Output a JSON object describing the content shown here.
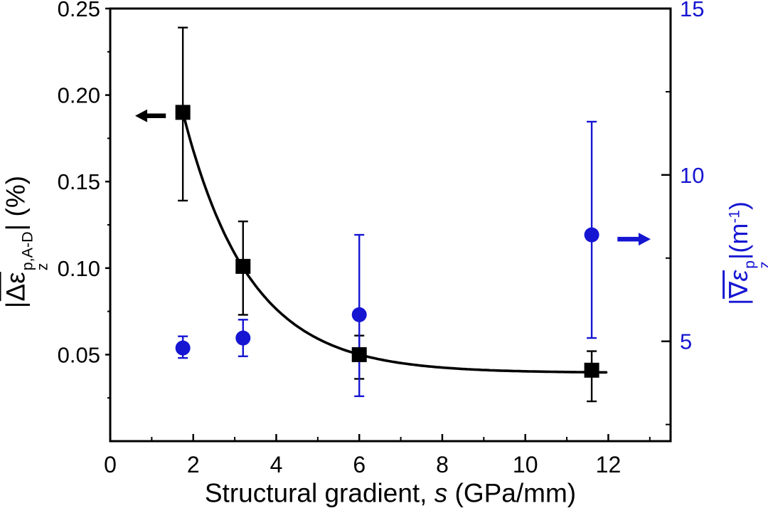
{
  "figure": {
    "background": "#ffffff"
  },
  "chart_data": {
    "type": "scatter",
    "title": "",
    "colors": {
      "left_series": "#000000",
      "right_series": "#1515d2",
      "frame": "#000000"
    },
    "x_axis": {
      "label_parts": {
        "prefix": "Structural gradient, ",
        "var": "s",
        "suffix": " (GPa/mm)"
      },
      "range": [
        0,
        13.5
      ],
      "major_ticks": [
        0,
        2,
        4,
        6,
        8,
        10,
        12
      ],
      "tick_labels": [
        "0",
        "2",
        "4",
        "6",
        "8",
        "10",
        "12"
      ],
      "minor_ticks": [
        1,
        3,
        5,
        7,
        9,
        11,
        13
      ]
    },
    "left_axis": {
      "label_parts": {
        "bar_open": "|",
        "overline": "Δε",
        "sup": "p,A-D",
        "sub": "z",
        "bar_close": "|",
        "unit": " (%)"
      },
      "range": [
        0,
        0.25
      ],
      "major_ticks": [
        0.05,
        0.1,
        0.15,
        0.2,
        0.25
      ],
      "tick_labels": [
        "0.05",
        "0.10",
        "0.15",
        "0.20",
        "0.25"
      ],
      "minor_ticks": [
        0.025,
        0.075,
        0.125,
        0.175,
        0.225
      ],
      "color": "#000000"
    },
    "right_axis": {
      "label_parts": {
        "bar_open": "|",
        "overline_nabla": "∇",
        "overline_eps": "ε",
        "sup": "p",
        "sub": "z",
        "bar_close": "|",
        "unit_open": "(m",
        "unit_exp": "-1",
        "unit_close": ")"
      },
      "range": [
        2,
        15
      ],
      "major_ticks": [
        5,
        10,
        15
      ],
      "tick_labels": [
        "5",
        "10",
        "15"
      ],
      "minor_ticks": [
        2.5,
        7.5,
        12.5
      ],
      "color": "#1515d2"
    },
    "series": [
      {
        "name": "plastic-strain-amplitude",
        "axis": "left",
        "marker": "square",
        "marker_size": 21,
        "color": "#000000",
        "x": [
          1.75,
          3.2,
          6.0,
          11.6
        ],
        "y": [
          0.19,
          0.101,
          0.05,
          0.041
        ],
        "err_plus": [
          0.049,
          0.026,
          0.011,
          0.011
        ],
        "err_minus": [
          0.051,
          0.028,
          0.014,
          0.018
        ]
      },
      {
        "name": "plastic-strain-gradient",
        "axis": "right",
        "marker": "circle",
        "marker_size": 21,
        "color": "#1515d2",
        "x": [
          1.75,
          3.2,
          6.0,
          11.6
        ],
        "y": [
          4.8,
          5.1,
          5.8,
          8.2
        ],
        "err_plus": [
          0.35,
          0.55,
          2.4,
          3.4
        ],
        "err_minus": [
          0.3,
          0.55,
          2.45,
          3.1
        ]
      }
    ],
    "fit_curve": {
      "name": "exponential-decay-fit",
      "axis": "left",
      "color": "#000000",
      "model": "y = y0 + A*exp(-x/tau)",
      "y0": 0.0395,
      "A": 0.449,
      "tau": 1.6,
      "x_start": 1.75,
      "x_end": 11.95
    },
    "annotations": [
      {
        "name": "left-axis-arrow",
        "direction": "left",
        "axis": "left",
        "color": "#000000",
        "x_tail": 1.34,
        "x_tip": 0.6,
        "y": 0.188
      },
      {
        "name": "right-axis-arrow",
        "direction": "right",
        "axis": "right",
        "color": "#1515d2",
        "x_tail": 12.22,
        "x_tip": 13.02,
        "y": 8.07
      }
    ]
  }
}
